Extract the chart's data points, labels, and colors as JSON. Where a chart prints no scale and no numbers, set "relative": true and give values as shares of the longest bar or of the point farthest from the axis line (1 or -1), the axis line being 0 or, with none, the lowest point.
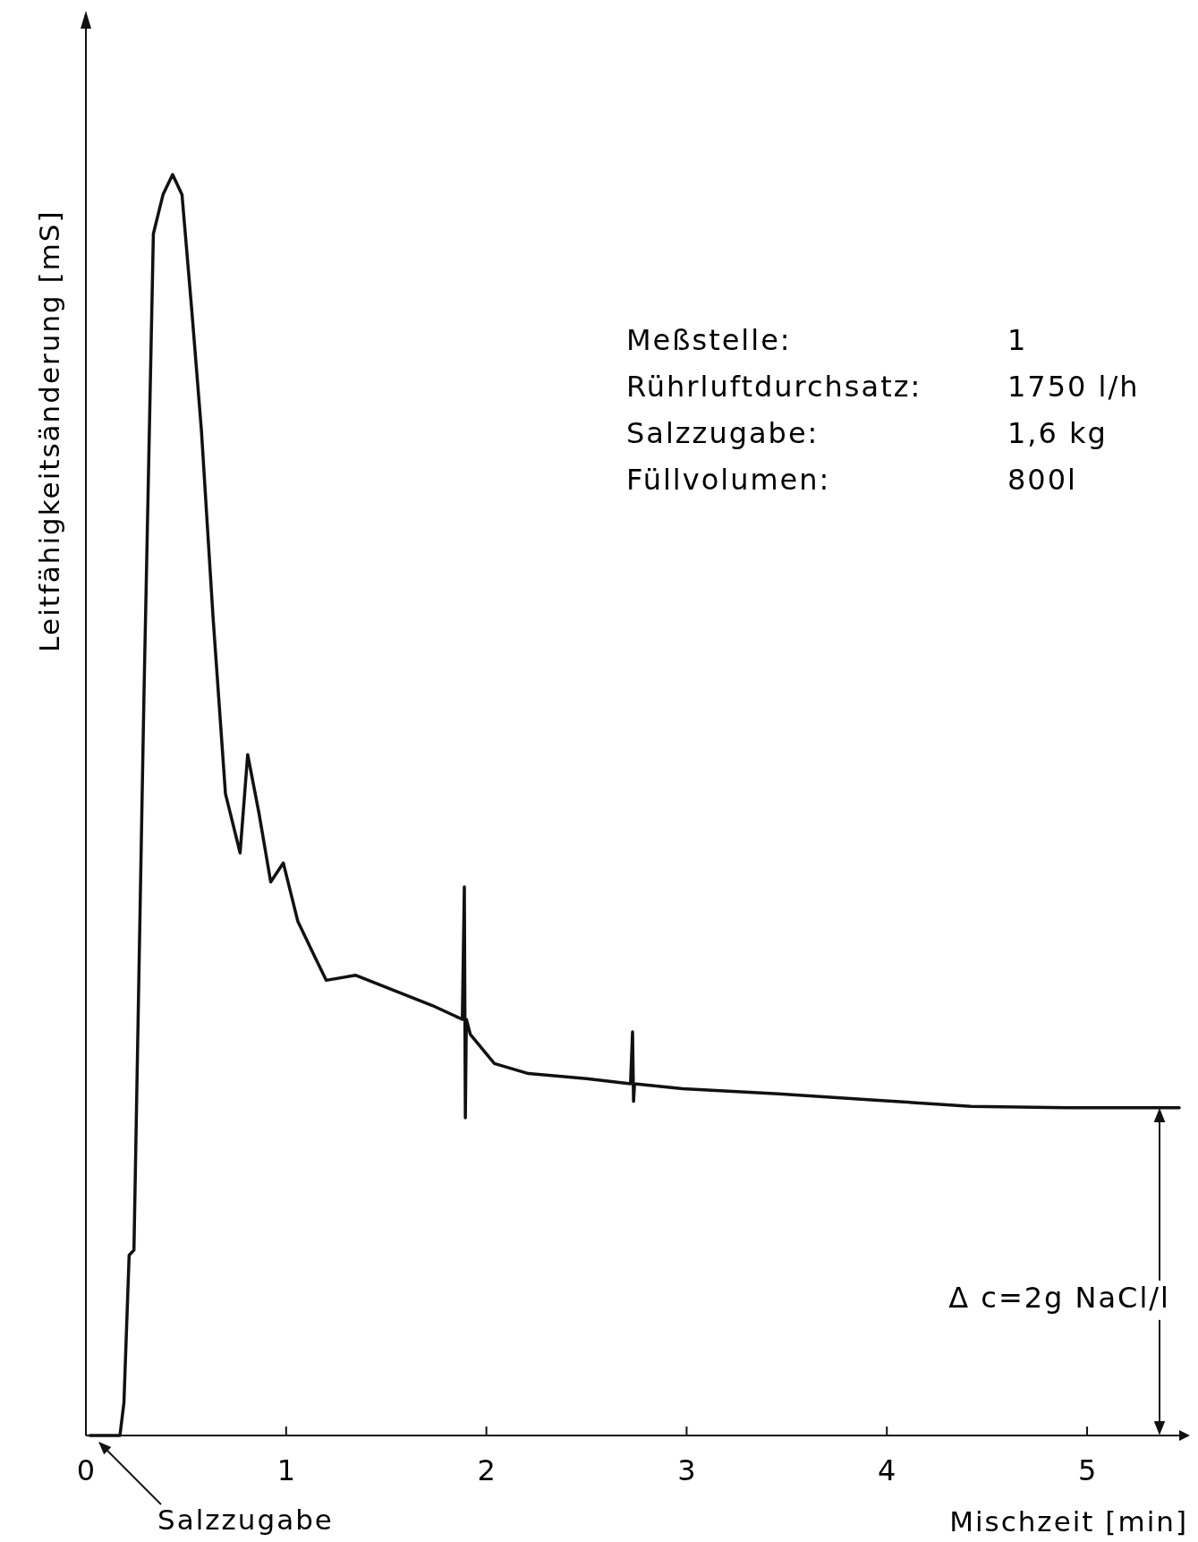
{
  "chart_data": {
    "type": "line",
    "relative": true,
    "xlabel": "Mischzeit [min]",
    "ylabel": "Leitfähigkeitsänderung [mS]",
    "xlim": [
      0,
      5.46
    ],
    "xticks": [
      0,
      1,
      2,
      3,
      4,
      5
    ],
    "line_style": "solid",
    "series": [
      {
        "color": "#111111",
        "x": [
          0.02,
          0.17,
          0.19,
          0.216,
          0.24,
          0.29,
          0.337,
          0.385,
          0.433,
          0.48,
          0.53,
          0.577,
          0.635,
          0.697,
          0.77,
          0.808,
          0.865,
          0.923,
          0.986,
          1.058,
          1.13,
          1.2,
          1.346,
          1.538,
          1.73,
          1.88,
          1.89,
          1.895,
          1.9,
          1.92,
          2.04,
          2.21,
          2.5,
          2.72,
          2.73,
          2.735,
          2.74,
          2.98,
          3.46,
          3.94,
          4.42,
          4.9,
          5.46
        ],
        "values": [
          0,
          0,
          0.026,
          0.143,
          0.147,
          0.587,
          0.953,
          0.984,
          1,
          0.984,
          0.89,
          0.797,
          0.649,
          0.509,
          0.462,
          0.54,
          0.493,
          0.439,
          0.454,
          0.408,
          0.384,
          0.361,
          0.365,
          0.353,
          0.341,
          0.33,
          0.435,
          0.252,
          0.33,
          0.318,
          0.295,
          0.287,
          0.283,
          0.279,
          0.32,
          0.265,
          0.279,
          0.275,
          0.271,
          0.266,
          0.261,
          0.26,
          0.26
        ]
      }
    ],
    "annotations": [
      "Meßstelle:",
      "1",
      "Rührluftdurchsatz:",
      "1750 l/h",
      "Salzzugabe:",
      "1,6 kg",
      "Füllvolumen:",
      "800l",
      "Δ c=2g NaCl/l",
      {
        "text": "Salzzugabe",
        "x": 0.05,
        "y": 0
      }
    ]
  }
}
